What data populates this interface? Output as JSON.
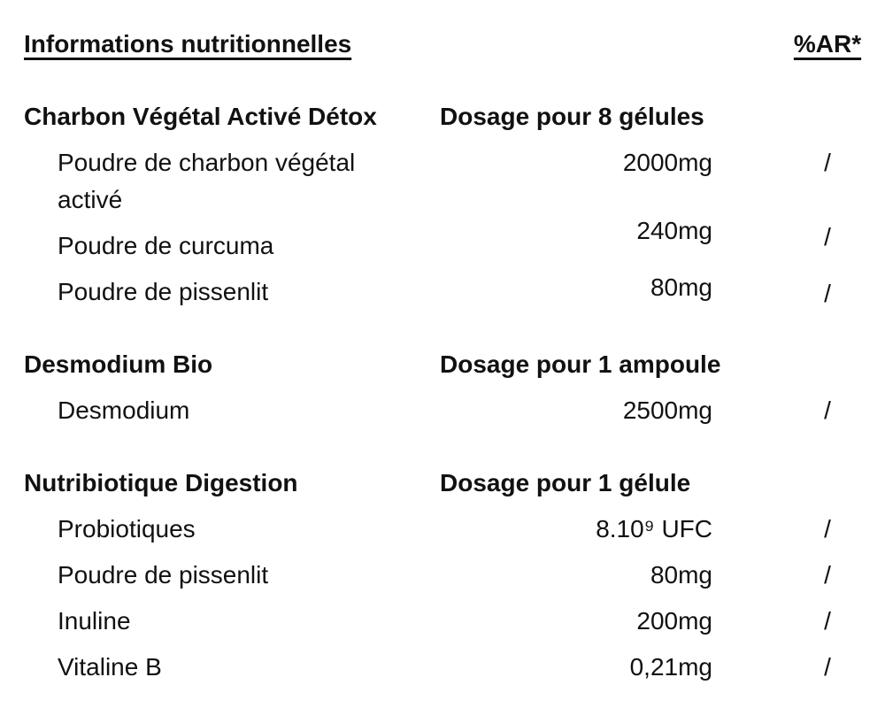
{
  "title": "Informations nutritionnelles",
  "ar_column_header": "%AR*",
  "colors": {
    "text": "#111111",
    "background": "#ffffff"
  },
  "sections": [
    {
      "name": "Charbon Végétal Activé Détox",
      "dosage_header": "Dosage pour 8 gélules",
      "rows": [
        {
          "label": "Poudre de charbon végétal activé",
          "value": "2000mg",
          "ar": "/"
        },
        {
          "label": "Poudre de curcuma",
          "value": "240mg",
          "ar": "/"
        },
        {
          "label": "Poudre de pissenlit",
          "value": "80mg",
          "ar": "/"
        }
      ]
    },
    {
      "name": "Desmodium Bio",
      "dosage_header": "Dosage pour 1 ampoule",
      "rows": [
        {
          "label": "Desmodium",
          "value": "2500mg",
          "ar": "/"
        }
      ]
    },
    {
      "name": "Nutribiotique Digestion",
      "dosage_header": "Dosage pour 1 gélule",
      "rows": [
        {
          "label": "Probiotiques",
          "value": "8.10⁹ UFC",
          "ar": "/"
        },
        {
          "label": "Poudre de pissenlit",
          "value": "80mg",
          "ar": "/"
        },
        {
          "label": "Inuline",
          "value": "200mg",
          "ar": "/"
        },
        {
          "label": "Vitaline B",
          "value": "0,21mg",
          "ar": "/"
        }
      ]
    }
  ]
}
